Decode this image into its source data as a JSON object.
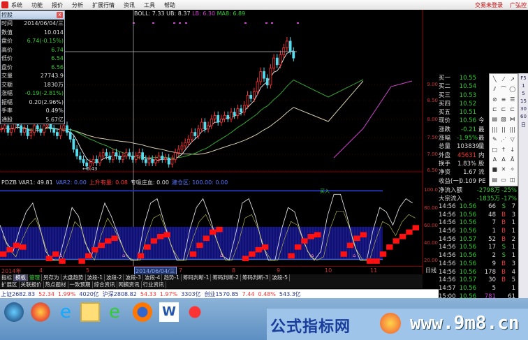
{
  "menu": {
    "items": [
      "系统",
      "功能",
      "报价",
      "分析",
      "扩展行情",
      "资讯",
      "工具",
      "帮助"
    ],
    "trade_status": "交易未登录",
    "stock_partial": "广弘控"
  },
  "boll": {
    "label": "BOLL: 7.33",
    "ub": "UB: 8.37",
    "lb": "LB: 6.30",
    "ma8": "MA8: 6.89"
  },
  "popup": {
    "title": "控股",
    "close": "x",
    "rows": [
      {
        "label": "时间",
        "value": "2014/06/04/三",
        "cls": "w"
      },
      {
        "label": "数值",
        "value": "10.014",
        "cls": "w"
      },
      {
        "label": "盘价",
        "value": "6.74(-0.15%)",
        "cls": "g"
      },
      {
        "label": "高价",
        "value": "6.74",
        "cls": "g"
      },
      {
        "label": "低价",
        "value": "6.54",
        "cls": "g"
      },
      {
        "label": "盘价",
        "value": "6.56",
        "cls": "g"
      },
      {
        "label": "交量",
        "value": "27743.9",
        "cls": "w"
      },
      {
        "label": "交额",
        "value": "1830万",
        "cls": "w"
      },
      {
        "label": "涨幅",
        "value": "-0.19(-2.81%)",
        "cls": "g"
      },
      {
        "label": "振幅",
        "value": "0.20(2.96%)",
        "cls": "w"
      },
      {
        "label": "手率",
        "value": "0.49%",
        "cls": "w"
      },
      {
        "label": "通股",
        "value": "5.67亿",
        "cls": "w"
      }
    ]
  },
  "low_marker": "6.43",
  "indicator": {
    "items": [
      {
        "text": "PDZB VAR1: 49.81",
        "cls": "w"
      },
      {
        "text": "VAR2: 0.00",
        "cls": "b"
      },
      {
        "text": "上升有量: 0.08",
        "cls": "r"
      },
      {
        "text": "专吸庄血: 0.00",
        "cls": "w"
      },
      {
        "text": "建仓区: 100.00: 0.00",
        "cls": "b"
      }
    ],
    "buy_marker": "买入"
  },
  "price_axis": [
    "9.00",
    "8.50",
    "8.00",
    "7.50",
    "7.00",
    "6.50"
  ],
  "ind_axis": [
    "100.0",
    "80.00",
    "60.00",
    "40.00",
    "20.00"
  ],
  "quote": {
    "rows": [
      {
        "a": "买一",
        "v": "10.55",
        "c": "",
        "cls": "g"
      },
      {
        "a": "买二",
        "v": "10.54",
        "c": "",
        "cls": "g"
      },
      {
        "a": "买三",
        "v": "10.53",
        "c": "",
        "cls": "g"
      },
      {
        "a": "买四",
        "v": "10.52",
        "c": "",
        "cls": "g"
      },
      {
        "a": "买五",
        "v": "10.51",
        "c": "",
        "cls": "g"
      },
      {
        "a": "现价",
        "v": "10.56",
        "c": "今",
        "cls": "g"
      },
      {
        "a": "涨跌",
        "v": "-0.21",
        "c": "最",
        "cls": "g"
      },
      {
        "a": "涨幅",
        "v": "-1.95%",
        "c": "最",
        "cls": "g"
      },
      {
        "a": "总量",
        "v": "103839",
        "c": "量",
        "cls": "w"
      },
      {
        "a": "外盘",
        "v": "45631",
        "c": "内",
        "cls": "r"
      },
      {
        "a": "换手",
        "v": "1.83%",
        "c": "股",
        "cls": "w"
      },
      {
        "a": "净资",
        "v": "1.67",
        "c": "流",
        "cls": "w"
      },
      {
        "a": "收益(一)",
        "v": "0.109",
        "c": "PE",
        "cls": "w"
      }
    ]
  },
  "flows": [
    {
      "label": "净流入额",
      "amount": "-2798万",
      "pct": "-25%"
    },
    {
      "label": "大宗流入",
      "amount": "-1835万",
      "pct": "-17%"
    }
  ],
  "trades": [
    [
      "14:56",
      "10.56",
      "66",
      "S",
      "7"
    ],
    [
      "14:56",
      "10.56",
      "48",
      "B",
      "3"
    ],
    [
      "14:56",
      "10.56",
      "7",
      "B",
      "1"
    ],
    [
      "14:56",
      "10.56",
      "1",
      "B",
      "1"
    ],
    [
      "14:56",
      "10.57",
      "52",
      "B",
      "2"
    ],
    [
      "14:56",
      "10.56",
      "17",
      "S",
      "1"
    ],
    [
      "14:56",
      "10.56",
      "2",
      "S",
      "1"
    ],
    [
      "14:56",
      "10.56",
      "9",
      "B",
      "3"
    ],
    [
      "14:56",
      "10.56",
      "178",
      "B",
      "4"
    ],
    [
      "14:56",
      "10.57",
      "30",
      "B",
      "5"
    ],
    [
      "14:57",
      "10.56",
      "5",
      "",
      "1"
    ],
    [
      "15:00",
      "10.56",
      "781",
      "",
      "61"
    ]
  ],
  "vtool": [
    "F5",
    "1",
    "5",
    "15",
    "30",
    "60",
    "日"
  ],
  "drawtool_icons": [
    "line",
    "ray",
    "arrow",
    "parallel",
    "arc",
    "circle",
    "ellipse",
    "fib",
    "gann",
    "channel",
    "channel2",
    "channel3",
    "fan",
    "fan2",
    "fan3",
    "bars",
    "bars2",
    "bars3",
    "pen",
    "speed",
    "triangle",
    "rect",
    "up-arrow",
    "down-arrow",
    "text-a",
    "text",
    "text-x",
    "block",
    "delete",
    "wand",
    "list",
    "window",
    "panel"
  ],
  "date_axis": [
    {
      "t": "2014年",
      "sel": false
    },
    {
      "t": "4",
      "sel": false
    },
    {
      "t": "5",
      "sel": false
    },
    {
      "t": "2014/06/04/三",
      "sel": true
    },
    {
      "t": "7",
      "sel": false
    },
    {
      "t": "8",
      "sel": false
    },
    {
      "t": "9",
      "sel": false
    },
    {
      "t": "10",
      "sel": false
    },
    {
      "t": "11",
      "sel": false
    }
  ],
  "period": "日线",
  "tabs1": [
    "指标",
    "模板",
    "管理",
    "另存为",
    "大盘趋势",
    "波段-1",
    "波段-2",
    "波段-3",
    "波段-4",
    "趋势-1",
    "筹码判断-1",
    "筹码判断-2",
    "筹码判断-3",
    "波段-5"
  ],
  "tabs2": [
    "扩展区",
    "关联报价",
    "热点题材",
    "一致预期",
    "综合资讯",
    "网摘资讯",
    "行业资讯"
  ],
  "status": [
    {
      "t": "上证2682.83",
      "cls": "blue"
    },
    {
      "t": "52.34",
      "cls": "r"
    },
    {
      "t": "1.99%",
      "cls": "r"
    },
    {
      "t": "4020亿",
      "cls": "blue"
    },
    {
      "t": "沪深2808.82",
      "cls": "blue"
    },
    {
      "t": "54.33",
      "cls": "r"
    },
    {
      "t": "1.97%",
      "cls": "r"
    },
    {
      "t": "3303亿",
      "cls": "blue"
    },
    {
      "t": "创业1570.85",
      "cls": "blue"
    },
    {
      "t": "7.44",
      "cls": "r"
    },
    {
      "t": "0.48%",
      "cls": "r"
    },
    {
      "t": "543.3亿",
      "cls": "blue"
    }
  ],
  "watermark": {
    "cn": "公式指标网",
    "url": "www.9m8.cn"
  },
  "colors": {
    "up": "#ff3333",
    "down": "#55ddee",
    "ma_long": "#d8d0b0",
    "ma_mid": "#33aa33",
    "boll_lb": "#cc44cc",
    "ind_fill": "#101070",
    "ind_red": "#ff1111"
  },
  "chart_data": {
    "type": "candlestick",
    "closes": [
      7.6,
      7.7,
      7.5,
      7.6,
      7.8,
      7.7,
      7.5,
      7.6,
      7.4,
      7.5,
      7.7,
      7.6,
      7.5,
      7.7,
      7.8,
      7.6,
      7.5,
      7.4,
      7.6,
      7.7,
      7.5,
      7.3,
      7.0,
      6.8,
      6.7,
      6.6,
      6.5,
      6.6,
      6.7,
      6.6,
      6.8,
      6.9,
      6.8,
      6.7,
      6.9,
      6.8,
      6.7,
      6.8,
      6.9,
      6.8,
      6.7,
      6.8,
      6.9,
      6.7,
      6.6,
      6.7,
      6.6,
      6.7,
      6.8,
      6.7,
      6.74,
      6.56,
      6.7,
      6.9,
      7.0,
      7.1,
      7.2,
      7.3,
      7.5,
      7.4,
      7.6,
      7.8,
      7.6,
      7.7,
      7.9,
      8.0,
      7.8,
      7.9,
      8.0,
      7.9,
      8.1,
      8.0,
      8.2,
      8.1,
      8.3,
      8.6,
      8.5,
      8.7,
      9.0,
      9.3,
      9.1,
      8.9,
      9.4,
      9.7,
      9.5,
      9.8,
      10.0,
      10.2,
      9.9,
      9.7
    ],
    "indicator_white": [
      60,
      40,
      30,
      55,
      75,
      85,
      60,
      30,
      20,
      20,
      50,
      80,
      70,
      40,
      25,
      60,
      85,
      70,
      50,
      30,
      20,
      20,
      60,
      85,
      90,
      65,
      40,
      20,
      20,
      55,
      80,
      90,
      70,
      45,
      25,
      20,
      50,
      85,
      90,
      70,
      40,
      20,
      20,
      55,
      80,
      75,
      50,
      30,
      20,
      30,
      70,
      95,
      95,
      70,
      40,
      20,
      20,
      55,
      80,
      75,
      60,
      80,
      90,
      85
    ],
    "indicator_red": [
      30,
      35,
      40,
      38,
      20,
      20,
      20,
      25,
      30,
      22,
      20,
      20,
      22,
      28,
      35,
      40,
      45,
      48,
      20,
      20,
      20,
      28,
      38,
      45,
      50,
      52,
      20,
      20,
      20,
      30,
      40,
      48,
      55,
      58,
      20,
      20,
      20,
      25,
      30,
      35,
      38,
      20,
      20,
      20,
      28,
      38,
      45,
      50,
      52,
      20,
      20,
      20,
      30,
      40,
      48,
      52,
      22,
      22,
      30,
      38,
      45,
      50,
      55,
      60
    ]
  }
}
